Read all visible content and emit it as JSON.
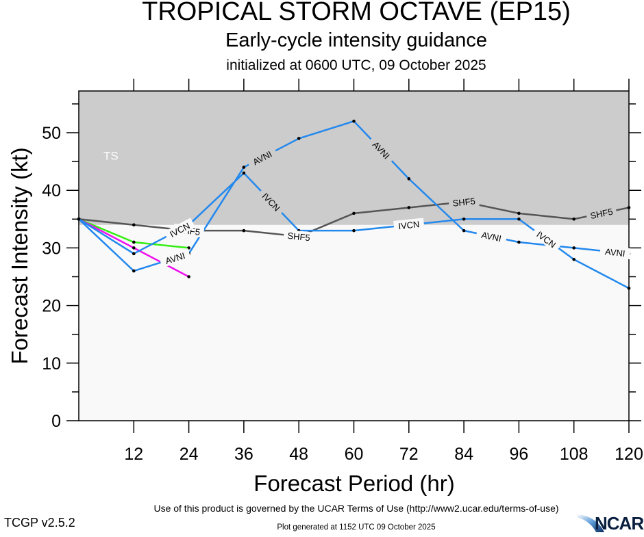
{
  "header": {
    "title": "TROPICAL STORM OCTAVE (EP15)",
    "subtitle": "Early-cycle intensity guidance",
    "initialized": "initialized at 0600 UTC, 09 October 2025"
  },
  "footer": {
    "terms": "Use of this product is governed by the UCAR Terms of Use (http://www2.ucar.edu/terms-of-use)",
    "version": "TCGP v2.5.2",
    "generated": "Plot generated at 1152 UTC   09 October 2025",
    "logo_text": "NCAR",
    "logo_icon": "ncar-swoosh-icon"
  },
  "colors": {
    "ts_band": "#cccccc",
    "below_band": "#f9f9f9",
    "SHF5": "#555555",
    "IVCN": "#2288ee",
    "AVNI": "#2288ee",
    "green": "#33ee11",
    "magenta": "#ee11ee"
  },
  "chart_data": {
    "type": "line",
    "title": "TROPICAL STORM OCTAVE (EP15)",
    "xlabel": "Forecast Period (hr)",
    "ylabel": "Forecast Intensity (kt)",
    "xlim": [
      0,
      120
    ],
    "ylim": [
      0,
      57
    ],
    "xticks": [
      12,
      24,
      36,
      48,
      60,
      72,
      84,
      96,
      108,
      120
    ],
    "yticks": [
      0,
      10,
      20,
      30,
      40,
      50
    ],
    "yminor_step": 5,
    "grid": false,
    "bands": [
      {
        "label": "TS",
        "from": 34,
        "to": 57
      }
    ],
    "series": [
      {
        "name": "SHF5",
        "color_key": "SHF5",
        "x": [
          0,
          12,
          24,
          36,
          48,
          60,
          72,
          84,
          96,
          108,
          120
        ],
        "y": [
          35,
          34,
          33,
          33,
          32,
          36,
          37,
          38,
          36,
          35,
          37
        ],
        "labels_at": [
          24,
          48,
          84,
          114
        ]
      },
      {
        "name": "IVCN",
        "color_key": "IVCN",
        "x": [
          0,
          12,
          24,
          36,
          48,
          60,
          72,
          84,
          96,
          108,
          120
        ],
        "y": [
          35,
          29,
          34,
          43,
          33,
          33,
          34,
          35,
          35,
          28,
          23
        ],
        "labels_at": [
          22,
          42,
          72,
          102
        ]
      },
      {
        "name": "AVNI",
        "color_key": "AVNI",
        "x": [
          0,
          12,
          24,
          36,
          48,
          60,
          72,
          84,
          96,
          108,
          120
        ],
        "y": [
          35,
          26,
          29,
          44,
          49,
          52,
          42,
          33,
          31,
          30,
          29
        ],
        "labels_at": [
          21,
          40,
          66,
          90,
          117
        ]
      },
      {
        "name": "",
        "color_key": "green",
        "x": [
          0,
          12,
          24
        ],
        "y": [
          35,
          31,
          30
        ],
        "labels_at": []
      },
      {
        "name": "",
        "color_key": "magenta",
        "x": [
          0,
          12,
          24
        ],
        "y": [
          35,
          30,
          25
        ],
        "labels_at": []
      }
    ]
  }
}
